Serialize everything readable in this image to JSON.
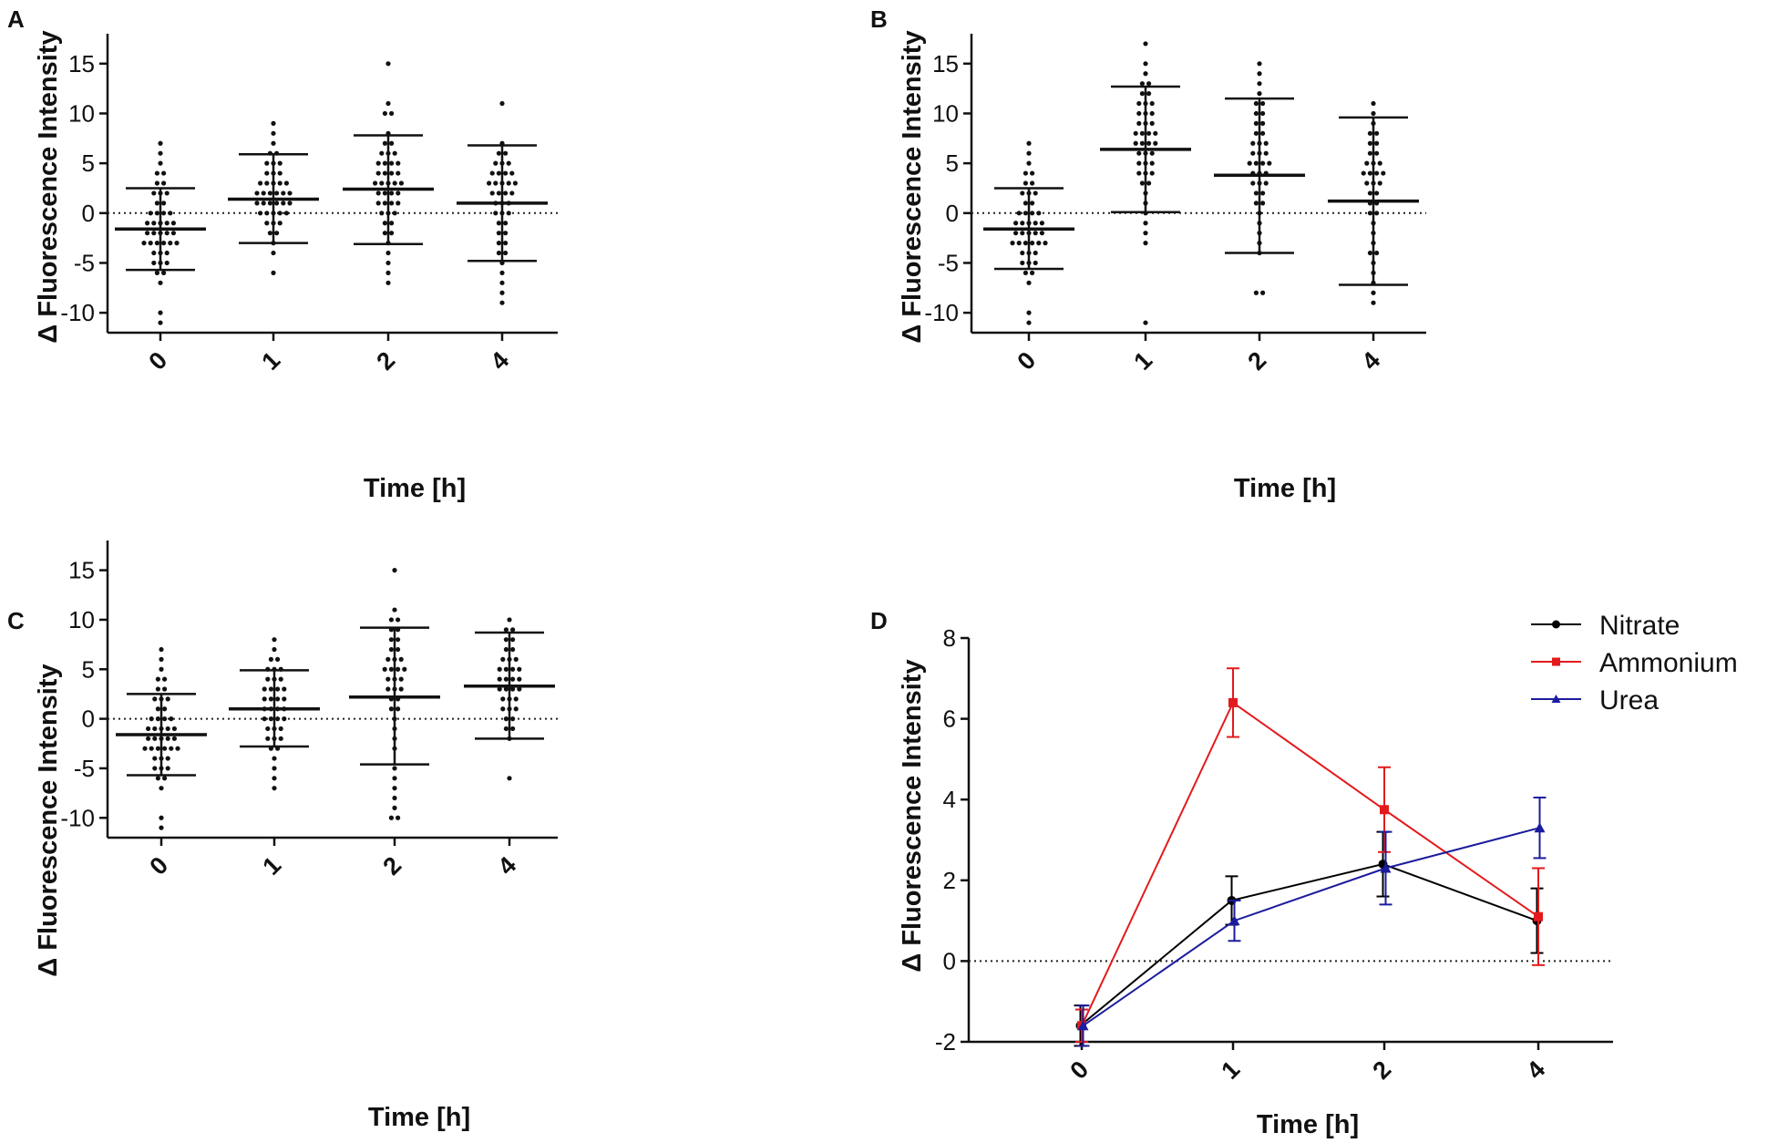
{
  "figure": {
    "description_panels": [
      "A",
      "B",
      "C",
      "D"
    ]
  },
  "chart_data": [
    {
      "panel": "A",
      "type": "scatter",
      "subtype": "dot-plot with mean and SD",
      "xlabel": "Time [h]",
      "ylabel": "Δ Fluorescence Intensity",
      "categories": [
        "0",
        "1",
        "2",
        "4"
      ],
      "yticks": [
        -10,
        -5,
        0,
        5,
        10,
        15
      ],
      "ylim": [
        -12,
        18
      ],
      "reference_line": 0,
      "groups": [
        {
          "x": "0",
          "mean": -1.6,
          "sd_low": -5.7,
          "sd_high": 2.5,
          "points": [
            7,
            6,
            5,
            4,
            4,
            3,
            3,
            2,
            2,
            2,
            1,
            1,
            0,
            0,
            0,
            0,
            -1,
            -1,
            -1,
            -1,
            -1,
            -2,
            -2,
            -2,
            -2,
            -2,
            -3,
            -3,
            -3,
            -3,
            -3,
            -3,
            -4,
            -4,
            -4,
            -5,
            -5,
            -5,
            -6,
            -6,
            -7,
            -10,
            -11
          ]
        },
        {
          "x": "1",
          "mean": 1.4,
          "sd_low": -3.0,
          "sd_high": 5.9,
          "points": [
            9,
            8,
            7,
            6,
            6,
            5,
            5,
            5,
            4,
            4,
            4,
            3,
            3,
            3,
            3,
            3,
            2,
            2,
            2,
            2,
            2,
            2,
            1,
            1,
            1,
            1,
            1,
            1,
            0,
            0,
            0,
            0,
            0,
            -1,
            -1,
            -1,
            -2,
            -2,
            -3,
            -4,
            -6
          ]
        },
        {
          "x": "2",
          "mean": 2.4,
          "sd_low": -3.1,
          "sd_high": 7.8,
          "points": [
            15,
            11,
            10,
            10,
            8,
            7,
            7,
            6,
            6,
            6,
            5,
            5,
            5,
            5,
            4,
            4,
            4,
            4,
            3,
            3,
            3,
            3,
            3,
            2,
            2,
            2,
            2,
            1,
            1,
            1,
            1,
            0,
            0,
            0,
            -1,
            -1,
            -2,
            -2,
            -3,
            -4,
            -5,
            -6,
            -7
          ]
        },
        {
          "x": "4",
          "mean": 1.0,
          "sd_low": -4.8,
          "sd_high": 6.8,
          "points": [
            11,
            7,
            6,
            6,
            5,
            5,
            5,
            4,
            4,
            4,
            4,
            3,
            3,
            3,
            3,
            3,
            2,
            2,
            2,
            2,
            1,
            1,
            1,
            0,
            0,
            0,
            -1,
            -1,
            -2,
            -2,
            -3,
            -3,
            -4,
            -4,
            -5,
            -6,
            -7,
            -8,
            -9
          ]
        }
      ]
    },
    {
      "panel": "B",
      "type": "scatter",
      "subtype": "dot-plot with mean and SD",
      "xlabel": "Time [h]",
      "ylabel": "Δ Fluorescence Intensity",
      "categories": [
        "0",
        "1",
        "2",
        "4"
      ],
      "yticks": [
        -10,
        -5,
        0,
        5,
        10,
        15
      ],
      "ylim": [
        -12,
        18
      ],
      "reference_line": 0,
      "groups": [
        {
          "x": "0",
          "mean": -1.6,
          "sd_low": -5.6,
          "sd_high": 2.5,
          "points": [
            7,
            6,
            5,
            4,
            4,
            3,
            3,
            2,
            2,
            2,
            1,
            1,
            0,
            0,
            0,
            0,
            -1,
            -1,
            -1,
            -1,
            -1,
            -2,
            -2,
            -2,
            -2,
            -2,
            -3,
            -3,
            -3,
            -3,
            -3,
            -3,
            -4,
            -4,
            -4,
            -5,
            -5,
            -5,
            -6,
            -6,
            -7,
            -10,
            -11
          ]
        },
        {
          "x": "1",
          "mean": 6.4,
          "sd_low": 0.1,
          "sd_high": 12.7,
          "points": [
            17,
            15,
            14,
            13,
            13,
            12,
            12,
            11,
            11,
            11,
            10,
            10,
            10,
            9,
            9,
            9,
            8,
            8,
            8,
            8,
            7,
            7,
            7,
            7,
            6,
            6,
            6,
            5,
            5,
            5,
            4,
            4,
            4,
            3,
            3,
            2,
            1,
            0,
            -1,
            -2,
            -3,
            -11
          ]
        },
        {
          "x": "2",
          "mean": 3.8,
          "sd_low": -4.0,
          "sd_high": 11.5,
          "points": [
            15,
            14,
            13,
            12,
            11,
            11,
            10,
            10,
            9,
            9,
            8,
            8,
            7,
            7,
            7,
            6,
            6,
            6,
            5,
            5,
            5,
            5,
            4,
            4,
            4,
            3,
            3,
            3,
            2,
            2,
            1,
            1,
            0,
            -1,
            -2,
            -3,
            -4,
            -8,
            -8
          ]
        },
        {
          "x": "4",
          "mean": 1.2,
          "sd_low": -7.2,
          "sd_high": 9.6,
          "points": [
            11,
            10,
            9,
            8,
            8,
            7,
            7,
            6,
            6,
            5,
            5,
            5,
            4,
            4,
            4,
            4,
            3,
            3,
            3,
            2,
            2,
            1,
            1,
            0,
            0,
            -1,
            -2,
            -3,
            -4,
            -4,
            -5,
            -6,
            -7,
            -8,
            -9
          ]
        }
      ]
    },
    {
      "panel": "C",
      "type": "scatter",
      "subtype": "dot-plot with mean and SD",
      "xlabel": "Time [h]",
      "ylabel": "Δ Fluorescence Intensity",
      "categories": [
        "0",
        "1",
        "2",
        "4"
      ],
      "yticks": [
        -10,
        -5,
        0,
        5,
        10,
        15
      ],
      "ylim": [
        -12,
        18
      ],
      "reference_line": 0,
      "groups": [
        {
          "x": "0",
          "mean": -1.6,
          "sd_low": -5.7,
          "sd_high": 2.5,
          "points": [
            7,
            6,
            5,
            4,
            4,
            3,
            3,
            2,
            2,
            2,
            1,
            1,
            0,
            0,
            0,
            0,
            -1,
            -1,
            -1,
            -1,
            -1,
            -2,
            -2,
            -2,
            -2,
            -2,
            -3,
            -3,
            -3,
            -3,
            -3,
            -3,
            -4,
            -4,
            -4,
            -5,
            -5,
            -5,
            -6,
            -6,
            -7,
            -10,
            -11
          ]
        },
        {
          "x": "1",
          "mean": 1.0,
          "sd_low": -2.8,
          "sd_high": 4.9,
          "points": [
            8,
            7,
            6,
            6,
            5,
            5,
            5,
            4,
            4,
            4,
            3,
            3,
            3,
            3,
            2,
            2,
            2,
            2,
            1,
            1,
            1,
            1,
            0,
            0,
            0,
            0,
            -1,
            -1,
            -1,
            -2,
            -2,
            -2,
            -3,
            -3,
            -4,
            -5,
            -6,
            -7
          ]
        },
        {
          "x": "2",
          "mean": 2.2,
          "sd_low": -4.6,
          "sd_high": 9.2,
          "points": [
            15,
            11,
            10,
            10,
            9,
            9,
            8,
            8,
            7,
            7,
            6,
            6,
            6,
            5,
            5,
            5,
            5,
            4,
            4,
            4,
            3,
            3,
            3,
            2,
            2,
            1,
            1,
            0,
            -1,
            -2,
            -3,
            -5,
            -6,
            -7,
            -8,
            -9,
            -10,
            -10
          ]
        },
        {
          "x": "4",
          "mean": 3.3,
          "sd_low": -2.0,
          "sd_high": 8.7,
          "points": [
            10,
            9,
            9,
            8,
            8,
            7,
            7,
            6,
            6,
            6,
            5,
            5,
            5,
            5,
            4,
            4,
            4,
            4,
            3,
            3,
            3,
            3,
            2,
            2,
            2,
            1,
            1,
            1,
            0,
            0,
            -1,
            -1,
            -2,
            -6
          ]
        }
      ]
    },
    {
      "panel": "D",
      "type": "line",
      "xlabel": "Time [h]",
      "ylabel": "Δ Fluorescence Intensity",
      "categories": [
        "0",
        "1",
        "2",
        "4"
      ],
      "yticks": [
        -2,
        0,
        2,
        4,
        6,
        8
      ],
      "ylim": [
        -2,
        8
      ],
      "reference_line": 0,
      "legend_position": "top-right",
      "series": [
        {
          "name": "Nitrate",
          "color": "#000000",
          "marker": "circle",
          "values": [
            -1.6,
            1.5,
            2.4,
            1.0
          ],
          "err": [
            0.5,
            0.6,
            0.8,
            0.8
          ]
        },
        {
          "name": "Ammonium",
          "color": "#e31a1c",
          "marker": "square",
          "values": [
            -1.6,
            6.4,
            3.75,
            1.1
          ],
          "err": [
            0.4,
            0.85,
            1.05,
            1.2
          ]
        },
        {
          "name": "Urea",
          "color": "#1c1c9e",
          "marker": "triangle",
          "values": [
            -1.6,
            1.0,
            2.3,
            3.3
          ],
          "err": [
            0.5,
            0.5,
            0.9,
            0.75
          ]
        }
      ]
    }
  ]
}
